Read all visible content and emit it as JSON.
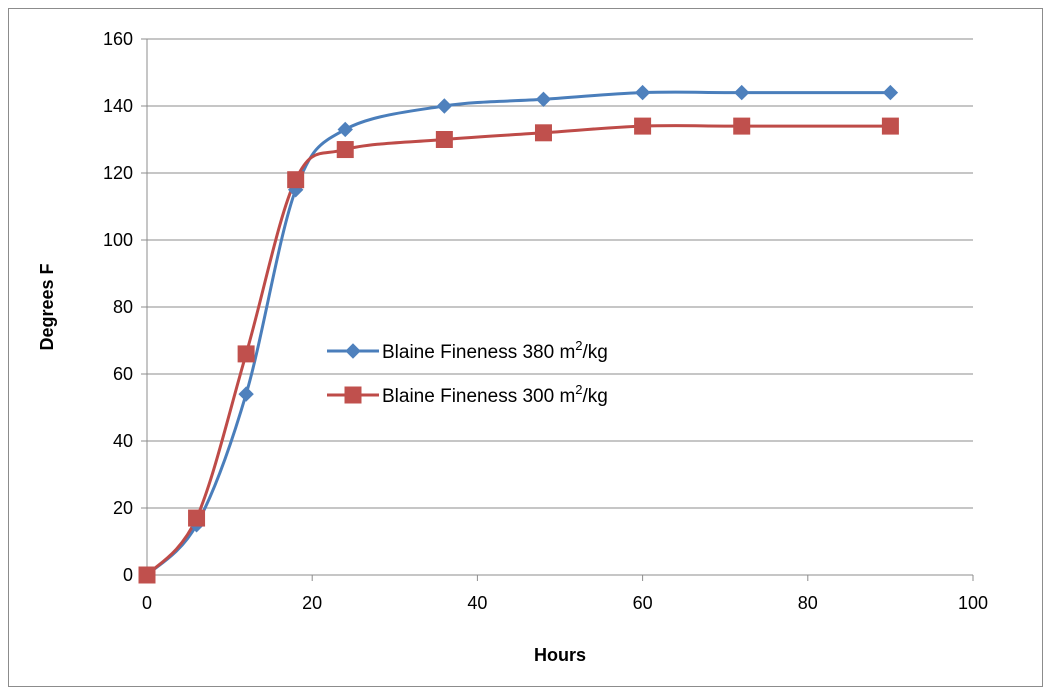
{
  "chart_data": {
    "type": "line",
    "title": "",
    "xlabel": "Hours",
    "ylabel": "Degrees F",
    "xlim": [
      0,
      100
    ],
    "ylim": [
      0,
      160
    ],
    "x_ticks": [
      0,
      20,
      40,
      60,
      80,
      100
    ],
    "y_ticks": [
      0,
      20,
      40,
      60,
      80,
      100,
      120,
      140,
      160
    ],
    "grid": "horizontal",
    "smoothed": true,
    "legend_position": "center-left",
    "series": [
      {
        "name": "Blaine Fineness 380 m²/kg",
        "name_base": "Blaine Fineness 380 m",
        "name_sup": "2",
        "name_tail": "/kg",
        "marker": "diamond",
        "color": "#4a7ebb",
        "marker_color": "#4f81bd",
        "x": [
          0,
          6,
          12,
          18,
          24,
          36,
          48,
          60,
          72,
          90
        ],
        "y": [
          0,
          15,
          54,
          115,
          133,
          140,
          142,
          144,
          144,
          144
        ]
      },
      {
        "name": "Blaine Fineness 300 m²/kg",
        "name_base": "Blaine Fineness 300 m",
        "name_sup": "2",
        "name_tail": "/kg",
        "marker": "square",
        "color": "#be4b48",
        "marker_color": "#c0504d",
        "x": [
          0,
          6,
          12,
          18,
          24,
          36,
          48,
          60,
          72,
          90
        ],
        "y": [
          0,
          17,
          66,
          118,
          127,
          130,
          132,
          134,
          134,
          134
        ]
      }
    ]
  }
}
